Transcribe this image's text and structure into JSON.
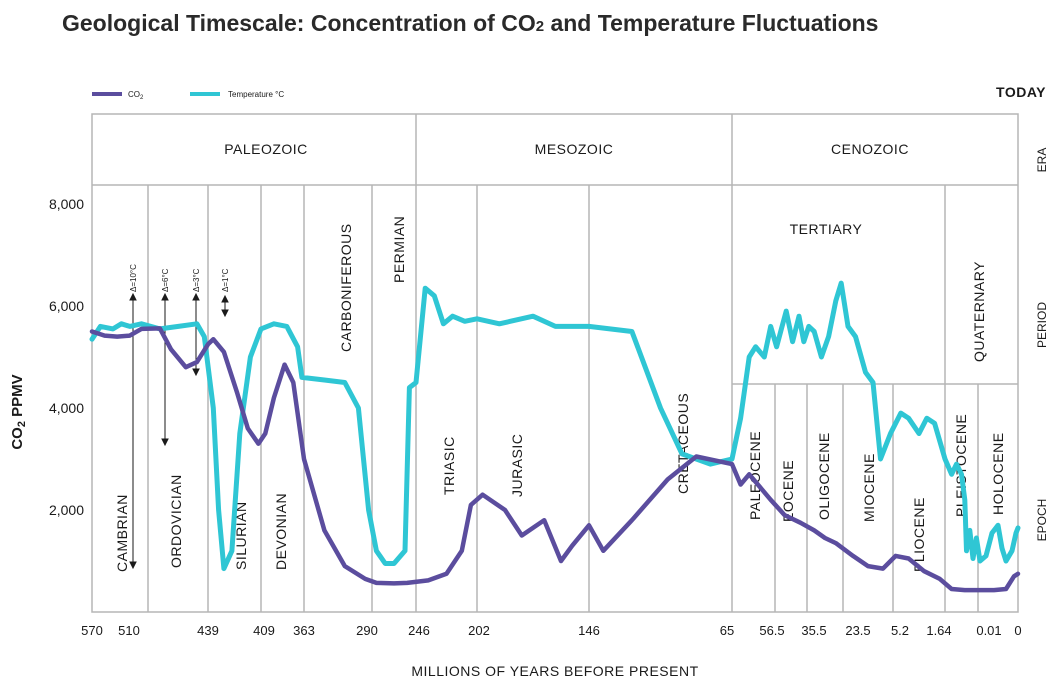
{
  "chart_data": {
    "type": "line",
    "title": "Geological Timescale: Concentration of CO",
    "title_sub": "2",
    "title_tail": " and Temperature Fluctuations",
    "ylabel_main": "CO",
    "ylabel_sub": "2",
    "ylabel_tail": " PPMV",
    "xlabel": "MILLIONS OF YEARS BEFORE PRESENT",
    "today_label": "TODAY",
    "side_labels": [
      "ERA",
      "PERIOD",
      "EPOCH"
    ],
    "ylim": [
      0,
      8000
    ],
    "y_ticks": [
      {
        "value": 2000,
        "label": "2,000"
      },
      {
        "value": 4000,
        "label": "4,000"
      },
      {
        "value": 6000,
        "label": "6,000"
      },
      {
        "value": 8000,
        "label": "8,000"
      }
    ],
    "x_ticks": [
      "570",
      "510",
      "439",
      "409",
      "363",
      "290",
      "246",
      "202",
      "146",
      "65",
      "56.5",
      "35.5",
      "23.5",
      "5.2",
      "1.64",
      "0.01",
      "0"
    ],
    "legend": [
      {
        "name": "CO",
        "sub": "2",
        "color": "#5b4d9e"
      },
      {
        "name": "Temperature °C",
        "sub": "",
        "color": "#2fc6d4"
      }
    ],
    "eras": [
      "PALEOZOIC",
      "MESOZOIC",
      "CENOZOIC"
    ],
    "periods": [
      "CAMBRIAN",
      "ORDOVICIAN",
      "SILURIAN",
      "DEVONIAN",
      "CARBONIFEROUS",
      "PERMIAN",
      "TRIASIC",
      "JURASIC",
      "CRETACEOUS",
      "TERTIARY",
      "QUATERNARY"
    ],
    "epochs": [
      "PALEOCENE",
      "EOCENE",
      "OLIGOCENE",
      "MIOCENE",
      "PLIOCENE",
      "PLEISTOCENE",
      "HOLOCENE"
    ],
    "temperature_deltas": [
      "Δ=10°C",
      "Δ=6°C",
      "Δ=3°C",
      "Δ=1°C"
    ],
    "series": [
      {
        "name": "CO2",
        "color": "#5b4d9e",
        "note": "x as tick-index position along the segmented time axis (0 = 570 Ma, 16 = today)",
        "points": [
          [
            0.0,
            5500
          ],
          [
            0.3,
            5420
          ],
          [
            0.6,
            5400
          ],
          [
            0.9,
            5420
          ],
          [
            1.1,
            5550
          ],
          [
            1.35,
            5560
          ],
          [
            1.5,
            5150
          ],
          [
            1.7,
            4800
          ],
          [
            1.85,
            4900
          ],
          [
            2.0,
            5250
          ],
          [
            2.1,
            5350
          ],
          [
            2.3,
            5100
          ],
          [
            2.55,
            4300
          ],
          [
            2.75,
            3600
          ],
          [
            2.95,
            3300
          ],
          [
            3.1,
            3500
          ],
          [
            3.3,
            4200
          ],
          [
            3.55,
            4850
          ],
          [
            3.75,
            4500
          ],
          [
            4.0,
            3000
          ],
          [
            4.3,
            1600
          ],
          [
            4.6,
            900
          ],
          [
            4.9,
            650
          ],
          [
            5.1,
            570
          ],
          [
            5.5,
            560
          ],
          [
            5.8,
            570
          ],
          [
            6.2,
            620
          ],
          [
            6.5,
            750
          ],
          [
            6.75,
            1200
          ],
          [
            6.9,
            2100
          ],
          [
            7.05,
            2300
          ],
          [
            7.25,
            2000
          ],
          [
            7.4,
            1500
          ],
          [
            7.6,
            1800
          ],
          [
            7.75,
            1000
          ],
          [
            7.85,
            1300
          ],
          [
            8.0,
            1700
          ],
          [
            8.1,
            1200
          ],
          [
            8.3,
            1800
          ],
          [
            8.55,
            2600
          ],
          [
            8.75,
            3050
          ],
          [
            9.0,
            2900
          ],
          [
            9.2,
            2500
          ],
          [
            9.4,
            2700
          ],
          [
            9.6,
            2500
          ],
          [
            9.9,
            2200
          ],
          [
            10.3,
            1900
          ],
          [
            10.8,
            1750
          ],
          [
            11.2,
            1600
          ],
          [
            11.5,
            1450
          ],
          [
            11.8,
            1350
          ],
          [
            12.2,
            1100
          ],
          [
            12.5,
            900
          ],
          [
            12.8,
            850
          ],
          [
            13.05,
            1100
          ],
          [
            13.3,
            1050
          ],
          [
            13.6,
            800
          ],
          [
            13.9,
            650
          ],
          [
            14.2,
            450
          ],
          [
            14.6,
            430
          ],
          [
            15.0,
            430
          ],
          [
            15.4,
            430
          ],
          [
            15.7,
            450
          ],
          [
            15.9,
            700
          ],
          [
            16.0,
            750
          ]
        ]
      },
      {
        "name": "Temperature °C",
        "color": "#2fc6d4",
        "points": [
          [
            0.0,
            5350
          ],
          [
            0.2,
            5600
          ],
          [
            0.5,
            5550
          ],
          [
            0.7,
            5650
          ],
          [
            0.9,
            5600
          ],
          [
            1.1,
            5650
          ],
          [
            1.35,
            5550
          ],
          [
            1.6,
            5600
          ],
          [
            1.85,
            5650
          ],
          [
            1.95,
            5400
          ],
          [
            2.1,
            4000
          ],
          [
            2.2,
            2000
          ],
          [
            2.3,
            850
          ],
          [
            2.45,
            1200
          ],
          [
            2.6,
            3500
          ],
          [
            2.8,
            5000
          ],
          [
            3.0,
            5550
          ],
          [
            3.3,
            5650
          ],
          [
            3.6,
            5600
          ],
          [
            3.85,
            5200
          ],
          [
            3.95,
            4600
          ],
          [
            4.3,
            4550
          ],
          [
            4.6,
            4500
          ],
          [
            4.8,
            4000
          ],
          [
            4.95,
            2000
          ],
          [
            5.1,
            1200
          ],
          [
            5.3,
            950
          ],
          [
            5.5,
            950
          ],
          [
            5.75,
            1200
          ],
          [
            5.85,
            4400
          ],
          [
            6.0,
            4500
          ],
          [
            6.15,
            6350
          ],
          [
            6.3,
            6200
          ],
          [
            6.45,
            5650
          ],
          [
            6.6,
            5800
          ],
          [
            6.8,
            5700
          ],
          [
            7.0,
            5750
          ],
          [
            7.2,
            5650
          ],
          [
            7.5,
            5800
          ],
          [
            7.7,
            5600
          ],
          [
            8.0,
            5600
          ],
          [
            8.3,
            5500
          ],
          [
            8.5,
            4000
          ],
          [
            8.65,
            3100
          ],
          [
            8.85,
            2900
          ],
          [
            9.0,
            3000
          ],
          [
            9.2,
            3800
          ],
          [
            9.4,
            5000
          ],
          [
            9.55,
            5200
          ],
          [
            9.75,
            5000
          ],
          [
            9.9,
            5600
          ],
          [
            10.05,
            5200
          ],
          [
            10.2,
            5550
          ],
          [
            10.35,
            5900
          ],
          [
            10.55,
            5300
          ],
          [
            10.75,
            5800
          ],
          [
            10.9,
            5300
          ],
          [
            11.05,
            5600
          ],
          [
            11.2,
            5500
          ],
          [
            11.4,
            5000
          ],
          [
            11.6,
            5400
          ],
          [
            11.8,
            6100
          ],
          [
            11.95,
            6450
          ],
          [
            12.1,
            5600
          ],
          [
            12.25,
            5400
          ],
          [
            12.45,
            4700
          ],
          [
            12.6,
            4500
          ],
          [
            12.75,
            3000
          ],
          [
            12.95,
            3500
          ],
          [
            13.15,
            3900
          ],
          [
            13.3,
            3800
          ],
          [
            13.5,
            3500
          ],
          [
            13.65,
            3800
          ],
          [
            13.8,
            3700
          ],
          [
            14.0,
            3000
          ],
          [
            14.2,
            2700
          ],
          [
            14.35,
            2900
          ],
          [
            14.5,
            2700
          ],
          [
            14.6,
            2200
          ],
          [
            14.65,
            1200
          ],
          [
            14.75,
            1600
          ],
          [
            14.85,
            1050
          ],
          [
            14.95,
            1450
          ],
          [
            15.05,
            1000
          ],
          [
            15.2,
            1100
          ],
          [
            15.35,
            1550
          ],
          [
            15.5,
            1700
          ],
          [
            15.6,
            1250
          ],
          [
            15.7,
            1000
          ],
          [
            15.85,
            1200
          ],
          [
            15.95,
            1550
          ],
          [
            16.0,
            1650
          ]
        ]
      }
    ]
  }
}
